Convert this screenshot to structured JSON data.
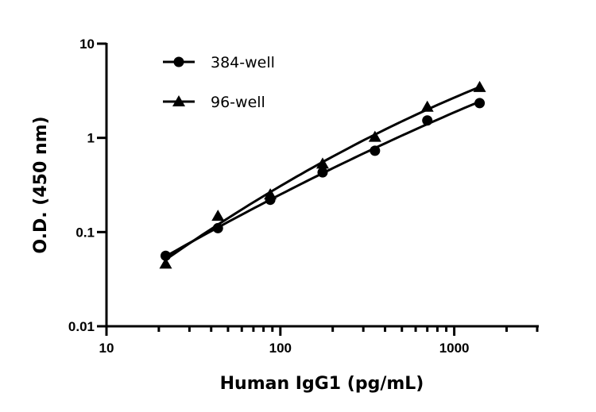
{
  "chart_data": {
    "type": "scatter",
    "title": "",
    "xlabel": "Human IgG1 (pg/mL)",
    "ylabel": "O.D. (450 nm)",
    "xscale": "log",
    "yscale": "log",
    "xlim": [
      10,
      3000
    ],
    "ylim": [
      0.01,
      10
    ],
    "xticks": [
      {
        "v": 10,
        "label": "10"
      },
      {
        "v": 100,
        "label": "100"
      },
      {
        "v": 1000,
        "label": "1000"
      }
    ],
    "yticks": [
      {
        "v": 10,
        "label": "10"
      },
      {
        "v": 1,
        "label": "1"
      },
      {
        "v": 0.1,
        "label": "0.1"
      },
      {
        "v": 0.01,
        "label": "0.01"
      }
    ],
    "grid": false,
    "legend_position": "top-left",
    "series": [
      {
        "name": "384-well",
        "marker": "circle",
        "color": "#000000",
        "x": [
          21.9,
          43.75,
          87.5,
          175,
          350,
          700,
          1400
        ],
        "y": [
          0.056,
          0.11,
          0.22,
          0.43,
          0.73,
          1.53,
          2.34
        ]
      },
      {
        "name": "96-well",
        "marker": "triangle",
        "color": "#000000",
        "x": [
          21.9,
          43.75,
          87.5,
          175,
          350,
          700,
          1400
        ],
        "y": [
          0.046,
          0.148,
          0.25,
          0.53,
          1.02,
          2.13,
          3.45
        ]
      }
    ]
  }
}
